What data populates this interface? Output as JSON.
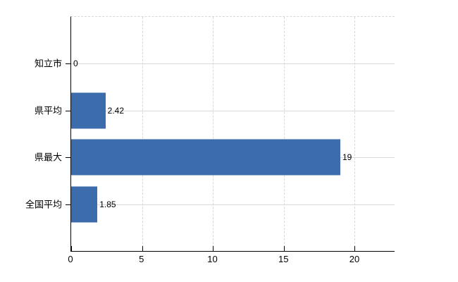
{
  "chart_data": {
    "type": "bar",
    "orientation": "horizontal",
    "title": "",
    "xlabel": "",
    "ylabel": "",
    "categories": [
      "知立市",
      "県平均",
      "県最大",
      "全国平均"
    ],
    "values": [
      0,
      2.42,
      19,
      1.85
    ],
    "value_labels": [
      "0",
      "2.42",
      "19",
      "1.85"
    ],
    "x_ticks": [
      0,
      5,
      10,
      15,
      20
    ],
    "x_tick_labels": [
      "0",
      "5",
      "10",
      "15",
      "20"
    ],
    "xlim": [
      0,
      22.83
    ],
    "grid": true,
    "legend": false
  },
  "colors": {
    "bar": "#3c6cac",
    "grid": "#d8d8d8",
    "axis": "#000000",
    "text": "#000000",
    "background": "#ffffff"
  }
}
